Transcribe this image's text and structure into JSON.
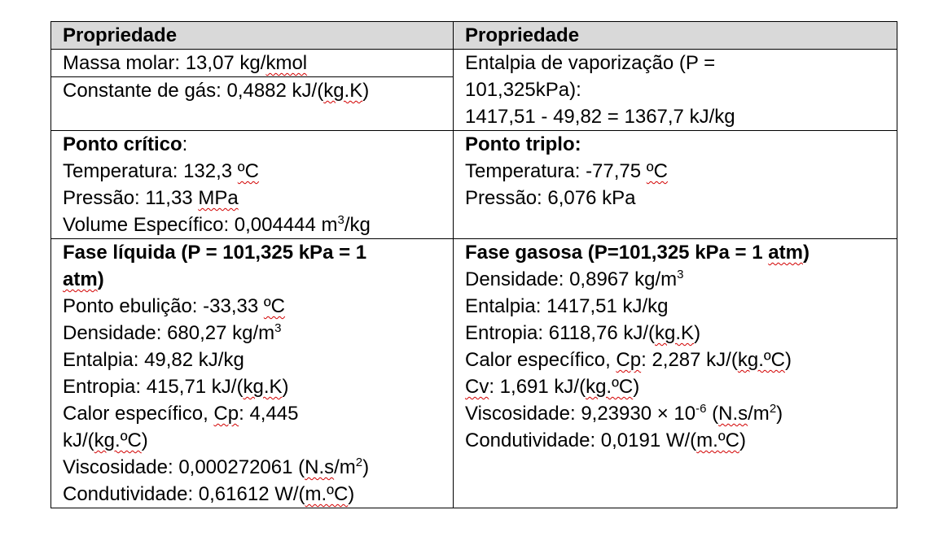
{
  "table": {
    "headers": [
      "Propriedade",
      "Propriedade"
    ],
    "row1": {
      "left_a": {
        "pre": "Massa molar: 13,07 kg/",
        "sq": "kmol"
      },
      "left_b": {
        "pre": "Constante de gás: 0,4882 kJ/(",
        "sq": "kg.K",
        "post": ")"
      },
      "right_l1": "Entalpia de vaporização (P =",
      "right_l2": "101,325kPa):",
      "right_l3": "1417,51 - 49,82 = 1367,7 kJ/kg"
    },
    "row2": {
      "left_title": "Ponto crítico",
      "left_colon": ":",
      "left_temp": {
        "pre": "Temperatura: 132,3 ",
        "sq": "ºC"
      },
      "left_press": {
        "pre": "Pressão: 11,33 ",
        "sq": "MPa"
      },
      "left_vol": {
        "pre": "Volume Específico: 0,004444 m",
        "sup": "3",
        "post": "/kg"
      },
      "right_title": "Ponto triplo:",
      "right_temp": {
        "pre": "Temperatura: -77,75 ",
        "sq": "ºC"
      },
      "right_press": "Pressão: 6,076 kPa"
    },
    "row3": {
      "left_title_a": "Fase líquida (P = 101,325 kPa = 1",
      "left_title_b_sq": "atm",
      "left_title_b_post": ")",
      "left_items": {
        "ebul": {
          "pre": "Ponto ebulição: -33,33 ",
          "sq": "ºC"
        },
        "dens": {
          "pre": "Densidade: 680,27 kg/m",
          "sup": "3"
        },
        "ent": "Entalpia: 49,82 kJ/kg",
        "entr": {
          "pre": "Entropia: 415,71 kJ/(",
          "sq": "kg.K",
          "post": ")"
        },
        "cp_a": {
          "pre": "Calor específico, ",
          "sq": "Cp",
          "post": ": 4,445"
        },
        "cp_b": {
          "pre": "kJ/(",
          "sq": "kg.ºC",
          "post": ")"
        },
        "visc": {
          "pre": "Viscosidade: 0,000272061 (",
          "sq": "N.s",
          "mid": "/m",
          "sup": "2",
          "post": ")"
        },
        "cond": {
          "pre": "Condutividade: 0,61612 W/(",
          "sq": "m.ºC",
          "post": ")"
        }
      },
      "right_title_a": "Fase gasosa (P=101,325 kPa = 1 ",
      "right_title_sq": "atm",
      "right_title_post": ")",
      "right_items": {
        "dens": {
          "pre": "Densidade: 0,8967 kg/m",
          "sup": "3"
        },
        "ent": "Entalpia: 1417,51 kJ/kg",
        "entr": {
          "pre": "Entropia: 6118,76 kJ/(",
          "sq": "kg.K",
          "post": ")"
        },
        "cp": {
          "pre": "Calor específico, ",
          "sq": "Cp",
          "mid": ": 2,287 kJ/(",
          "sq2": "kg.ºC",
          "post": ")"
        },
        "cv": {
          "sq": "Cv",
          "mid": ": 1,691 kJ/(",
          "sq2": "kg.ºC",
          "post": ")"
        },
        "visc": {
          "pre": "Viscosidade: 9,23930 × 10",
          "sup": "-6",
          "mid": " (",
          "sq": "N.s",
          "mid2": "/m",
          "sup2": "2",
          "post": ")"
        },
        "cond": {
          "pre": "Condutividade: 0,0191 W/(",
          "sq": "m.ºC",
          "post": ")"
        }
      }
    }
  }
}
